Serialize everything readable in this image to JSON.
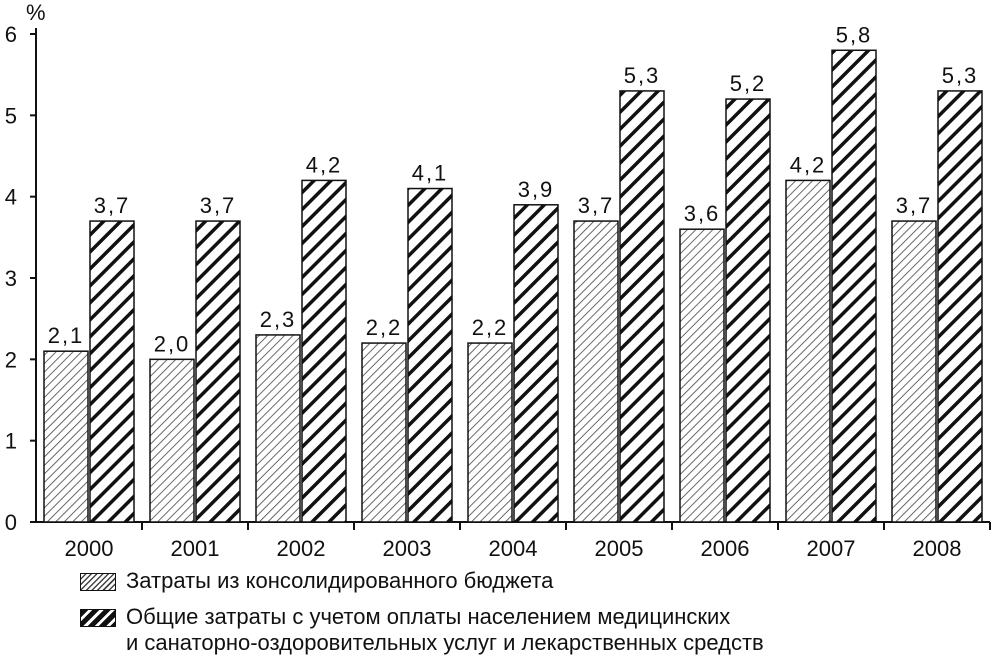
{
  "chart_data": {
    "type": "bar",
    "ylabel": "%",
    "ylim": [
      0,
      6
    ],
    "yticks": [
      0,
      1,
      2,
      3,
      4,
      5,
      6
    ],
    "grid": false,
    "legend_position": "bottom",
    "categories": [
      "2000",
      "2001",
      "2002",
      "2003",
      "2004",
      "2005",
      "2006",
      "2007",
      "2008"
    ],
    "series": [
      {
        "name": "Затраты из консолидированного бюджета",
        "values": [
          2.1,
          2.0,
          2.3,
          2.2,
          2.2,
          3.7,
          3.6,
          4.2,
          3.7
        ],
        "labels": [
          "2,1",
          "2,0",
          "2,3",
          "2,2",
          "2,2",
          "3,7",
          "3,6",
          "4,2",
          "3,7"
        ],
        "pattern": "light-hatch"
      },
      {
        "name": "Общие затраты с учетом оплаты населением медицинских\nи санаторно-оздоровительных услуг и лекарственных средств",
        "values": [
          3.7,
          3.7,
          4.2,
          4.1,
          3.9,
          5.3,
          5.2,
          5.8,
          5.3
        ],
        "labels": [
          "3,7",
          "3,7",
          "4,2",
          "4,1",
          "3,9",
          "5,3",
          "5,2",
          "5,8",
          "5,3"
        ],
        "pattern": "dark-hatch"
      }
    ]
  }
}
